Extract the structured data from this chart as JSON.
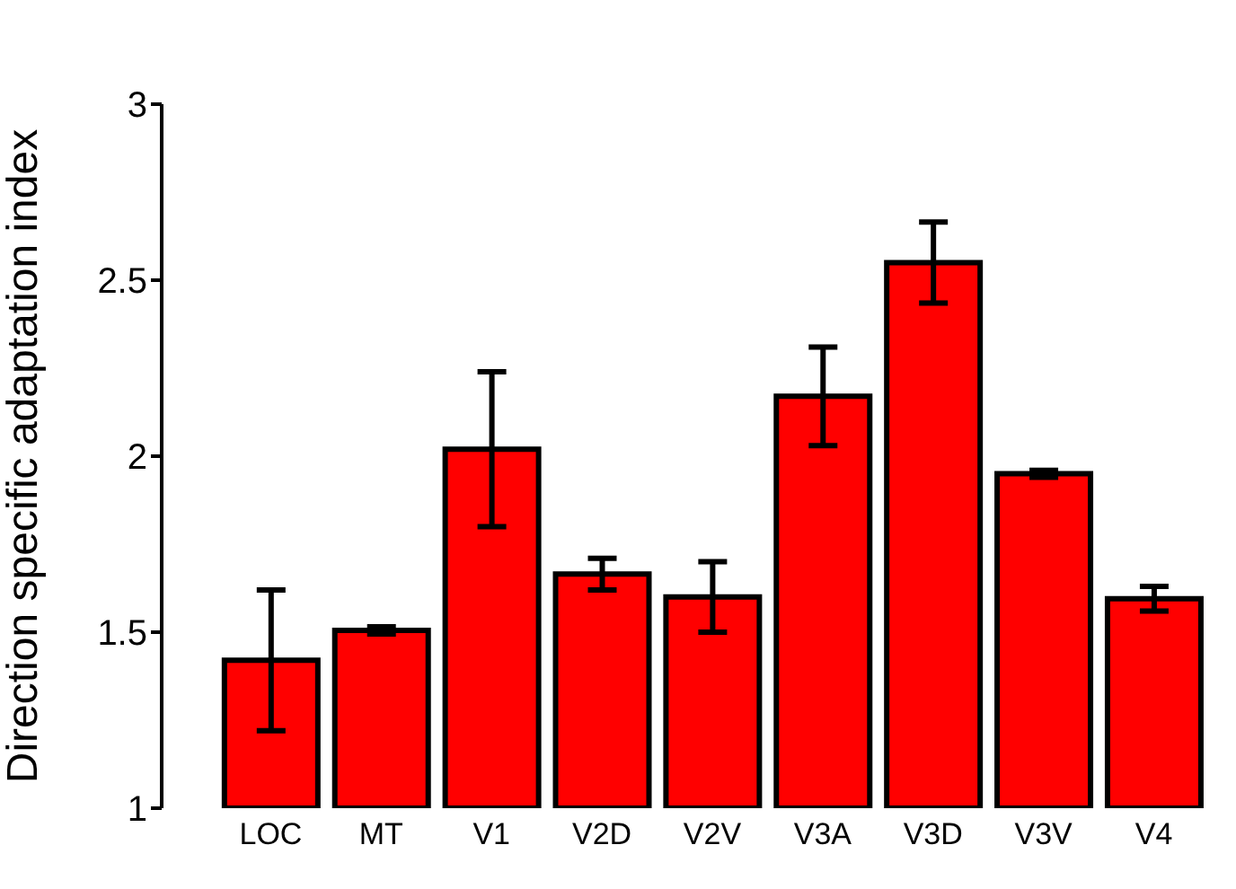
{
  "chart_data": {
    "type": "bar",
    "ylabel": "Direction specific adaptation index",
    "categories": [
      "LOC",
      "MT",
      "V1",
      "V2D",
      "V2V",
      "V3A",
      "V3D",
      "V3V",
      "V4"
    ],
    "values": [
      1.42,
      1.505,
      2.02,
      1.665,
      1.6,
      2.17,
      2.55,
      1.95,
      1.595
    ],
    "errors": [
      0.2,
      0.01,
      0.22,
      0.045,
      0.1,
      0.14,
      0.115,
      0.01,
      0.035
    ],
    "color": "#ff0000",
    "ylim": [
      1,
      3
    ],
    "yticks": [
      1,
      1.5,
      2,
      2.5,
      3
    ],
    "grid": false,
    "legend": false
  }
}
